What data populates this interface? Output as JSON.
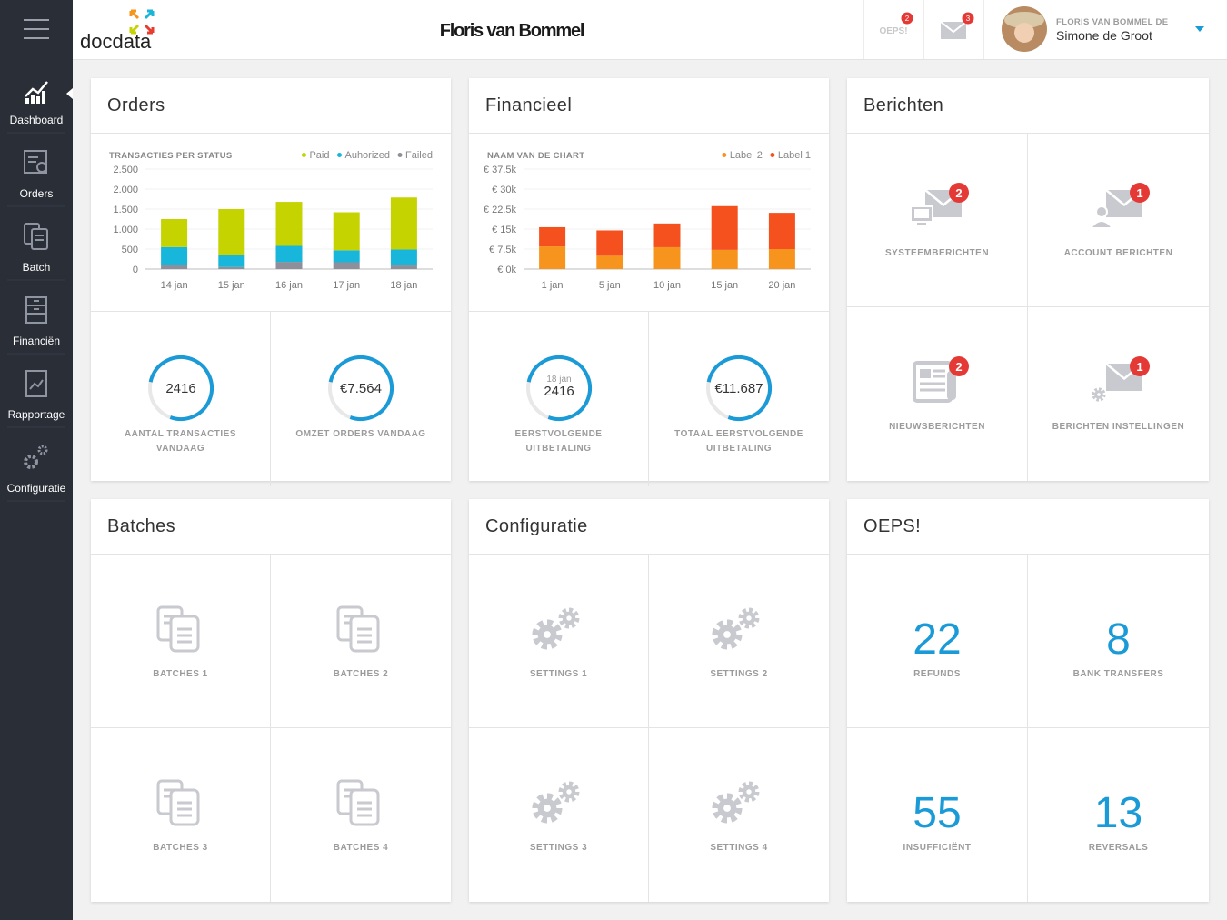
{
  "sidebar": {
    "items": [
      {
        "label": "Dashboard",
        "active": true
      },
      {
        "label": "Orders",
        "active": false
      },
      {
        "label": "Batch",
        "active": false
      },
      {
        "label": "Financiën",
        "active": false
      },
      {
        "label": "Rapportage",
        "active": false
      },
      {
        "label": "Configuratie",
        "active": false
      }
    ]
  },
  "header": {
    "logo": "docdata",
    "brand": "Floris van Bommel",
    "alert": {
      "label": "OEPS!",
      "count": 2
    },
    "messages": {
      "count": 3
    },
    "user": {
      "company": "FLORIS VAN BOMMEL DE",
      "name": "Simone de Groot"
    }
  },
  "orders": {
    "title": "Orders",
    "chart": {
      "type": "bar",
      "stacked": true,
      "stack_from": "last",
      "grid": true,
      "title": "TRANSACTIES PER STATUS",
      "categories": [
        "14 jan",
        "15 jan",
        "16 jan",
        "17 jan",
        "18 jan"
      ],
      "series": [
        {
          "name": "Paid",
          "color": "#c5d300",
          "values": [
            700,
            1150,
            1100,
            950,
            1300
          ]
        },
        {
          "name": "Auhorized",
          "color": "#18b6da",
          "values": [
            450,
            300,
            400,
            300,
            400
          ]
        },
        {
          "name": "Failed",
          "color": "#8d8f9b",
          "values": [
            100,
            50,
            180,
            170,
            90
          ]
        }
      ],
      "ylim": [
        0,
        2500
      ],
      "yticks": [
        0,
        500,
        {
          "value": 1000,
          "label": "1.000"
        },
        {
          "value": 1500,
          "label": "1.500"
        },
        {
          "value": 2000,
          "label": "2.000"
        },
        {
          "value": 2500,
          "label": "2.500"
        }
      ]
    },
    "stats": [
      {
        "value": 2416,
        "label": "AANTAL TRANSACTIES VANDAAG"
      },
      {
        "value": "€7.564",
        "label": "OMZET ORDERS VANDAAG"
      }
    ]
  },
  "financieel": {
    "title": "Financieel",
    "chart": {
      "type": "bar",
      "stacked": true,
      "stack_from": "first",
      "grid": true,
      "title": "NAAM VAN DE CHART",
      "categories": [
        "1 jan",
        "5 jan",
        "10 jan",
        "15 jan",
        "20 jan"
      ],
      "series": [
        {
          "name": "Label 2",
          "color": "#f7941d",
          "values": [
            8.5,
            5,
            8.2,
            7.2,
            7.5
          ]
        },
        {
          "name": "Label 1",
          "color": "#f4511e",
          "values": [
            7.2,
            9.5,
            8.9,
            16.4,
            13.6
          ]
        }
      ],
      "ylim": [
        0,
        37.5
      ],
      "yticks": [
        {
          "value": 0,
          "label": "€ 0k"
        },
        {
          "value": 7.5,
          "label": "€ 7.5k"
        },
        {
          "value": 15,
          "label": "€ 15k"
        },
        {
          "value": 22.5,
          "label": "€ 22.5k"
        },
        {
          "value": 30,
          "label": "€ 30k"
        },
        {
          "value": 37.5,
          "label": "€ 37.5k"
        }
      ]
    },
    "stats": [
      {
        "date": "18 jan",
        "value": 2416,
        "label": "EERSTVOLGENDE UITBETALING"
      },
      {
        "value": "€11.687",
        "label": "TOTAAL EERSTVOLGENDE UITBETALING"
      }
    ]
  },
  "berichten": {
    "title": "Berichten",
    "tiles": [
      {
        "label": "SYSTEEMBERICHTEN",
        "badge": 2
      },
      {
        "label": "ACCOUNT BERICHTEN",
        "badge": 1
      },
      {
        "label": "NIEUWSBERICHTEN",
        "badge": 2
      },
      {
        "label": "BERICHTEN INSTELLINGEN",
        "badge": 1
      }
    ]
  },
  "batches": {
    "title": "Batches",
    "tiles": [
      {
        "label": "BATCHES 1"
      },
      {
        "label": "BATCHES 2"
      },
      {
        "label": "BATCHES 3"
      },
      {
        "label": "BATCHES 4"
      }
    ]
  },
  "configuratie": {
    "title": "Configuratie",
    "tiles": [
      {
        "label": "SETTINGS 1"
      },
      {
        "label": "SETTINGS 2"
      },
      {
        "label": "SETTINGS 3"
      },
      {
        "label": "SETTINGS 4"
      }
    ]
  },
  "oeps": {
    "title": "OEPS!",
    "tiles": [
      {
        "value": 22,
        "label": "REFUNDS"
      },
      {
        "value": 8,
        "label": "BANK TRANSFERS"
      },
      {
        "value": 55,
        "label": "INSUFFICIËNT"
      },
      {
        "value": 13,
        "label": "REVERSALS"
      }
    ]
  }
}
